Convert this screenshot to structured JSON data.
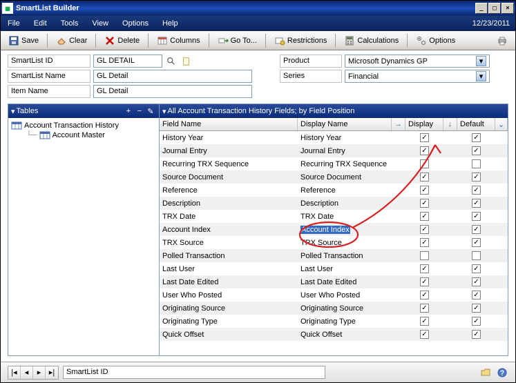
{
  "window": {
    "title": "SmartList Builder",
    "date": "12/23/2011"
  },
  "menu": {
    "file": "File",
    "edit": "Edit",
    "tools": "Tools",
    "view": "View",
    "options": "Options",
    "help": "Help"
  },
  "toolbar": {
    "save": "Save",
    "clear": "Clear",
    "delete": "Delete",
    "columns": "Columns",
    "goto": "Go To...",
    "restrictions": "Restrictions",
    "calculations": "Calculations",
    "options": "Options"
  },
  "form": {
    "smartlist_id_label": "SmartList ID",
    "smartlist_id_value": "GL DETAIL",
    "smartlist_name_label": "SmartList Name",
    "smartlist_name_value": "GL Detail",
    "item_name_label": "Item Name",
    "item_name_value": "GL Detail",
    "product_label": "Product",
    "product_value": "Microsoft Dynamics GP",
    "series_label": "Series",
    "series_value": "Financial"
  },
  "tables_panel": {
    "title": "Tables",
    "tree": [
      {
        "label": "Account Transaction History",
        "level": 0
      },
      {
        "label": "Account Master",
        "level": 1
      }
    ]
  },
  "fields_panel": {
    "title": "All Account Transaction History Fields; by Field Position",
    "col_field": "Field Name",
    "col_display": "Display Name",
    "col_disp_chk": "Display",
    "col_def_chk": "Default",
    "rows": [
      {
        "field": "History Year",
        "display": "History Year",
        "disp": true,
        "def": true
      },
      {
        "field": "Journal Entry",
        "display": "Journal Entry",
        "disp": true,
        "def": true
      },
      {
        "field": "Recurring TRX Sequence",
        "display": "Recurring TRX Sequence",
        "disp": false,
        "def": false
      },
      {
        "field": "Source Document",
        "display": "Source Document",
        "disp": true,
        "def": true
      },
      {
        "field": "Reference",
        "display": "Reference",
        "disp": true,
        "def": true
      },
      {
        "field": "Description",
        "display": "Description",
        "disp": true,
        "def": true
      },
      {
        "field": "TRX Date",
        "display": "TRX Date",
        "disp": true,
        "def": true
      },
      {
        "field": "Account Index",
        "display": "Account Index",
        "disp": true,
        "def": true,
        "selected": true
      },
      {
        "field": "TRX Source",
        "display": "TRX Source",
        "disp": true,
        "def": true
      },
      {
        "field": "Polled Transaction",
        "display": "Polled Transaction",
        "disp": false,
        "def": false
      },
      {
        "field": "Last User",
        "display": "Last User",
        "disp": true,
        "def": true
      },
      {
        "field": "Last Date Edited",
        "display": "Last Date Edited",
        "disp": true,
        "def": true
      },
      {
        "field": "User Who Posted",
        "display": "User Who Posted",
        "disp": true,
        "def": true
      },
      {
        "field": "Originating Source",
        "display": "Originating Source",
        "disp": true,
        "def": true
      },
      {
        "field": "Originating Type",
        "display": "Originating Type",
        "disp": true,
        "def": true
      },
      {
        "field": "Quick Offset",
        "display": "Quick Offset",
        "disp": true,
        "def": true
      }
    ]
  },
  "footer": {
    "sort_field": "SmartList ID"
  },
  "colors": {
    "titlebar_grad_a": "#0a246a",
    "titlebar_grad_b": "#1c4db8",
    "panel_head_a": "#2a4a9a",
    "panel_head_b": "#0a2a7a",
    "row_alt": "#eef0f2",
    "selection_bg": "#316ac5",
    "border": "#7f9db9",
    "annotation": "#d92020"
  }
}
